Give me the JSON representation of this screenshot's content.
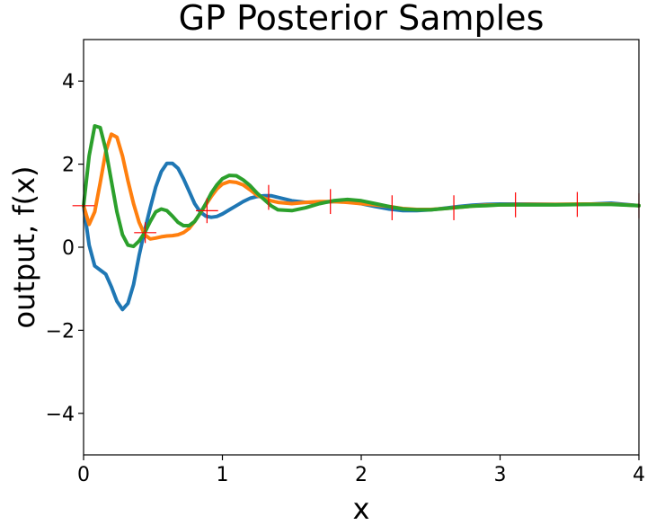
{
  "chart_data": {
    "type": "line",
    "title": "GP Posterior Samples",
    "xlabel": "x",
    "ylabel": "output, f(x)",
    "xlim": [
      0,
      4
    ],
    "ylim": [
      -5,
      5
    ],
    "xticks": [
      0,
      1,
      2,
      3,
      4
    ],
    "yticks": [
      -4,
      -2,
      0,
      2,
      4
    ],
    "grid": false,
    "legend": "none",
    "colors": [
      "#1f77b4",
      "#ff7f0e",
      "#2ca02c"
    ],
    "errorbar_color": "#ff0000",
    "observations": {
      "x": [
        0.0,
        0.444,
        0.889,
        1.333,
        1.778,
        2.222,
        2.667,
        3.111,
        3.556,
        4.0
      ],
      "y": [
        1.0,
        0.35,
        0.88,
        1.2,
        1.1,
        0.95,
        0.95,
        1.02,
        1.03,
        1.0
      ],
      "xerr": [
        0.08,
        0.08,
        0.08,
        0.0,
        0.0,
        0.0,
        0.0,
        0.0,
        0.0,
        0.0
      ],
      "yerr": [
        0.0,
        0.25,
        0.3,
        0.3,
        0.3,
        0.3,
        0.3,
        0.3,
        0.3,
        0.3
      ]
    },
    "series": [
      {
        "x": [
          0.0,
          0.04,
          0.08,
          0.12,
          0.16,
          0.2,
          0.24,
          0.28,
          0.32,
          0.36,
          0.4,
          0.44,
          0.48,
          0.52,
          0.56,
          0.6,
          0.64,
          0.68,
          0.72,
          0.76,
          0.8,
          0.84,
          0.88,
          0.92,
          0.96,
          1.0,
          1.05,
          1.1,
          1.15,
          1.2,
          1.25,
          1.3,
          1.35,
          1.4,
          1.5,
          1.6,
          1.7,
          1.8,
          1.9,
          2.0,
          2.1,
          2.2,
          2.3,
          2.4,
          2.5,
          2.6,
          2.7,
          2.8,
          2.9,
          3.0,
          3.2,
          3.4,
          3.6,
          3.8,
          4.0
        ],
        "y": [
          1.0,
          0.05,
          -0.45,
          -0.55,
          -0.65,
          -0.95,
          -1.3,
          -1.5,
          -1.35,
          -0.9,
          -0.2,
          0.4,
          0.95,
          1.45,
          1.82,
          2.02,
          2.02,
          1.9,
          1.65,
          1.35,
          1.05,
          0.85,
          0.75,
          0.72,
          0.74,
          0.8,
          0.9,
          1.0,
          1.1,
          1.18,
          1.22,
          1.24,
          1.24,
          1.2,
          1.12,
          1.08,
          1.08,
          1.1,
          1.1,
          1.05,
          0.98,
          0.92,
          0.88,
          0.88,
          0.9,
          0.94,
          0.98,
          1.01,
          1.03,
          1.04,
          1.04,
          1.03,
          1.03,
          1.06,
          1.0
        ]
      },
      {
        "x": [
          0.0,
          0.04,
          0.08,
          0.12,
          0.16,
          0.2,
          0.24,
          0.28,
          0.32,
          0.36,
          0.4,
          0.44,
          0.48,
          0.52,
          0.56,
          0.6,
          0.64,
          0.68,
          0.72,
          0.76,
          0.8,
          0.84,
          0.88,
          0.92,
          0.96,
          1.0,
          1.05,
          1.1,
          1.15,
          1.2,
          1.25,
          1.3,
          1.35,
          1.4,
          1.5,
          1.6,
          1.7,
          1.8,
          1.9,
          2.0,
          2.1,
          2.2,
          2.3,
          2.4,
          2.5,
          2.6,
          2.7,
          2.8,
          2.9,
          3.0,
          3.2,
          3.4,
          3.6,
          3.8,
          4.0
        ],
        "y": [
          1.0,
          0.55,
          0.85,
          1.55,
          2.3,
          2.72,
          2.65,
          2.2,
          1.6,
          1.05,
          0.6,
          0.3,
          0.2,
          0.22,
          0.25,
          0.27,
          0.28,
          0.3,
          0.35,
          0.45,
          0.62,
          0.82,
          1.02,
          1.22,
          1.4,
          1.52,
          1.58,
          1.56,
          1.5,
          1.38,
          1.25,
          1.18,
          1.12,
          1.08,
          1.05,
          1.08,
          1.1,
          1.1,
          1.08,
          1.05,
          1.02,
          0.98,
          0.93,
          0.91,
          0.91,
          0.93,
          0.96,
          0.99,
          1.01,
          1.02,
          1.03,
          1.03,
          1.04,
          1.04,
          1.0
        ]
      },
      {
        "x": [
          0.0,
          0.04,
          0.08,
          0.12,
          0.16,
          0.2,
          0.24,
          0.28,
          0.32,
          0.36,
          0.4,
          0.44,
          0.48,
          0.52,
          0.56,
          0.6,
          0.64,
          0.68,
          0.72,
          0.76,
          0.8,
          0.84,
          0.88,
          0.92,
          0.96,
          1.0,
          1.05,
          1.1,
          1.15,
          1.2,
          1.25,
          1.3,
          1.35,
          1.4,
          1.5,
          1.6,
          1.7,
          1.8,
          1.9,
          2.0,
          2.1,
          2.2,
          2.3,
          2.4,
          2.5,
          2.6,
          2.7,
          2.8,
          2.9,
          3.0,
          3.2,
          3.4,
          3.6,
          3.8,
          4.0
        ],
        "y": [
          1.0,
          2.2,
          2.92,
          2.88,
          2.35,
          1.6,
          0.85,
          0.3,
          0.05,
          0.02,
          0.15,
          0.35,
          0.62,
          0.85,
          0.92,
          0.88,
          0.75,
          0.6,
          0.52,
          0.52,
          0.62,
          0.82,
          1.05,
          1.3,
          1.5,
          1.65,
          1.73,
          1.72,
          1.62,
          1.48,
          1.3,
          1.15,
          1.0,
          0.9,
          0.88,
          0.95,
          1.05,
          1.12,
          1.15,
          1.12,
          1.05,
          0.98,
          0.92,
          0.9,
          0.9,
          0.93,
          0.96,
          0.99,
          1.0,
          1.02,
          1.02,
          1.02,
          1.03,
          1.03,
          1.0
        ]
      }
    ]
  }
}
